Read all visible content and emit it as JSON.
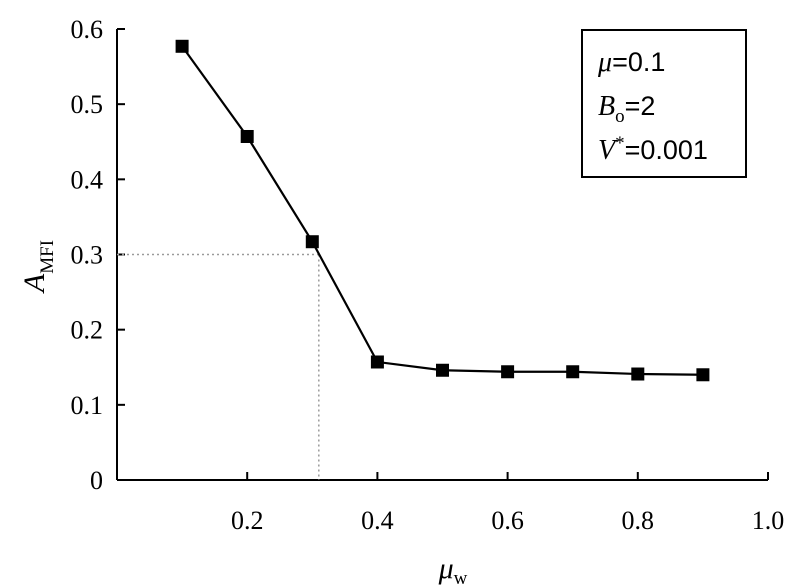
{
  "chart_data": {
    "type": "line",
    "x": [
      0.1,
      0.2,
      0.3,
      0.4,
      0.5,
      0.6,
      0.7,
      0.8,
      0.9
    ],
    "series": [
      {
        "values": [
          0.577,
          0.457,
          0.317,
          0.157,
          0.146,
          0.144,
          0.144,
          0.141,
          0.14
        ]
      }
    ],
    "xlim": [
      0,
      1.0
    ],
    "ylim": [
      0,
      0.6
    ],
    "xticks": [
      "0.2",
      "0.4",
      "0.6",
      "0.8",
      "1.0"
    ],
    "yticks": [
      "0",
      "0.1",
      "0.2",
      "0.3",
      "0.4",
      "0.5",
      "0.6"
    ],
    "xlabel": {
      "main": "μ",
      "sub": "w"
    },
    "ylabel": {
      "main": "A",
      "sub": "MFI"
    },
    "reference_point": {
      "x": 0.31,
      "y": 0.3
    },
    "grid": false,
    "marker": "square",
    "line_color": "#000000",
    "legend_box": {
      "position": "top-right",
      "lines": [
        {
          "sym": "μ",
          "sub": "",
          "sup": "",
          "rest": "=0.1"
        },
        {
          "sym": "B",
          "sub": "o",
          "sup": "",
          "rest": "=2"
        },
        {
          "sym": "V",
          "sub": "",
          "sup": "*",
          "rest": "=0.001"
        }
      ]
    }
  }
}
